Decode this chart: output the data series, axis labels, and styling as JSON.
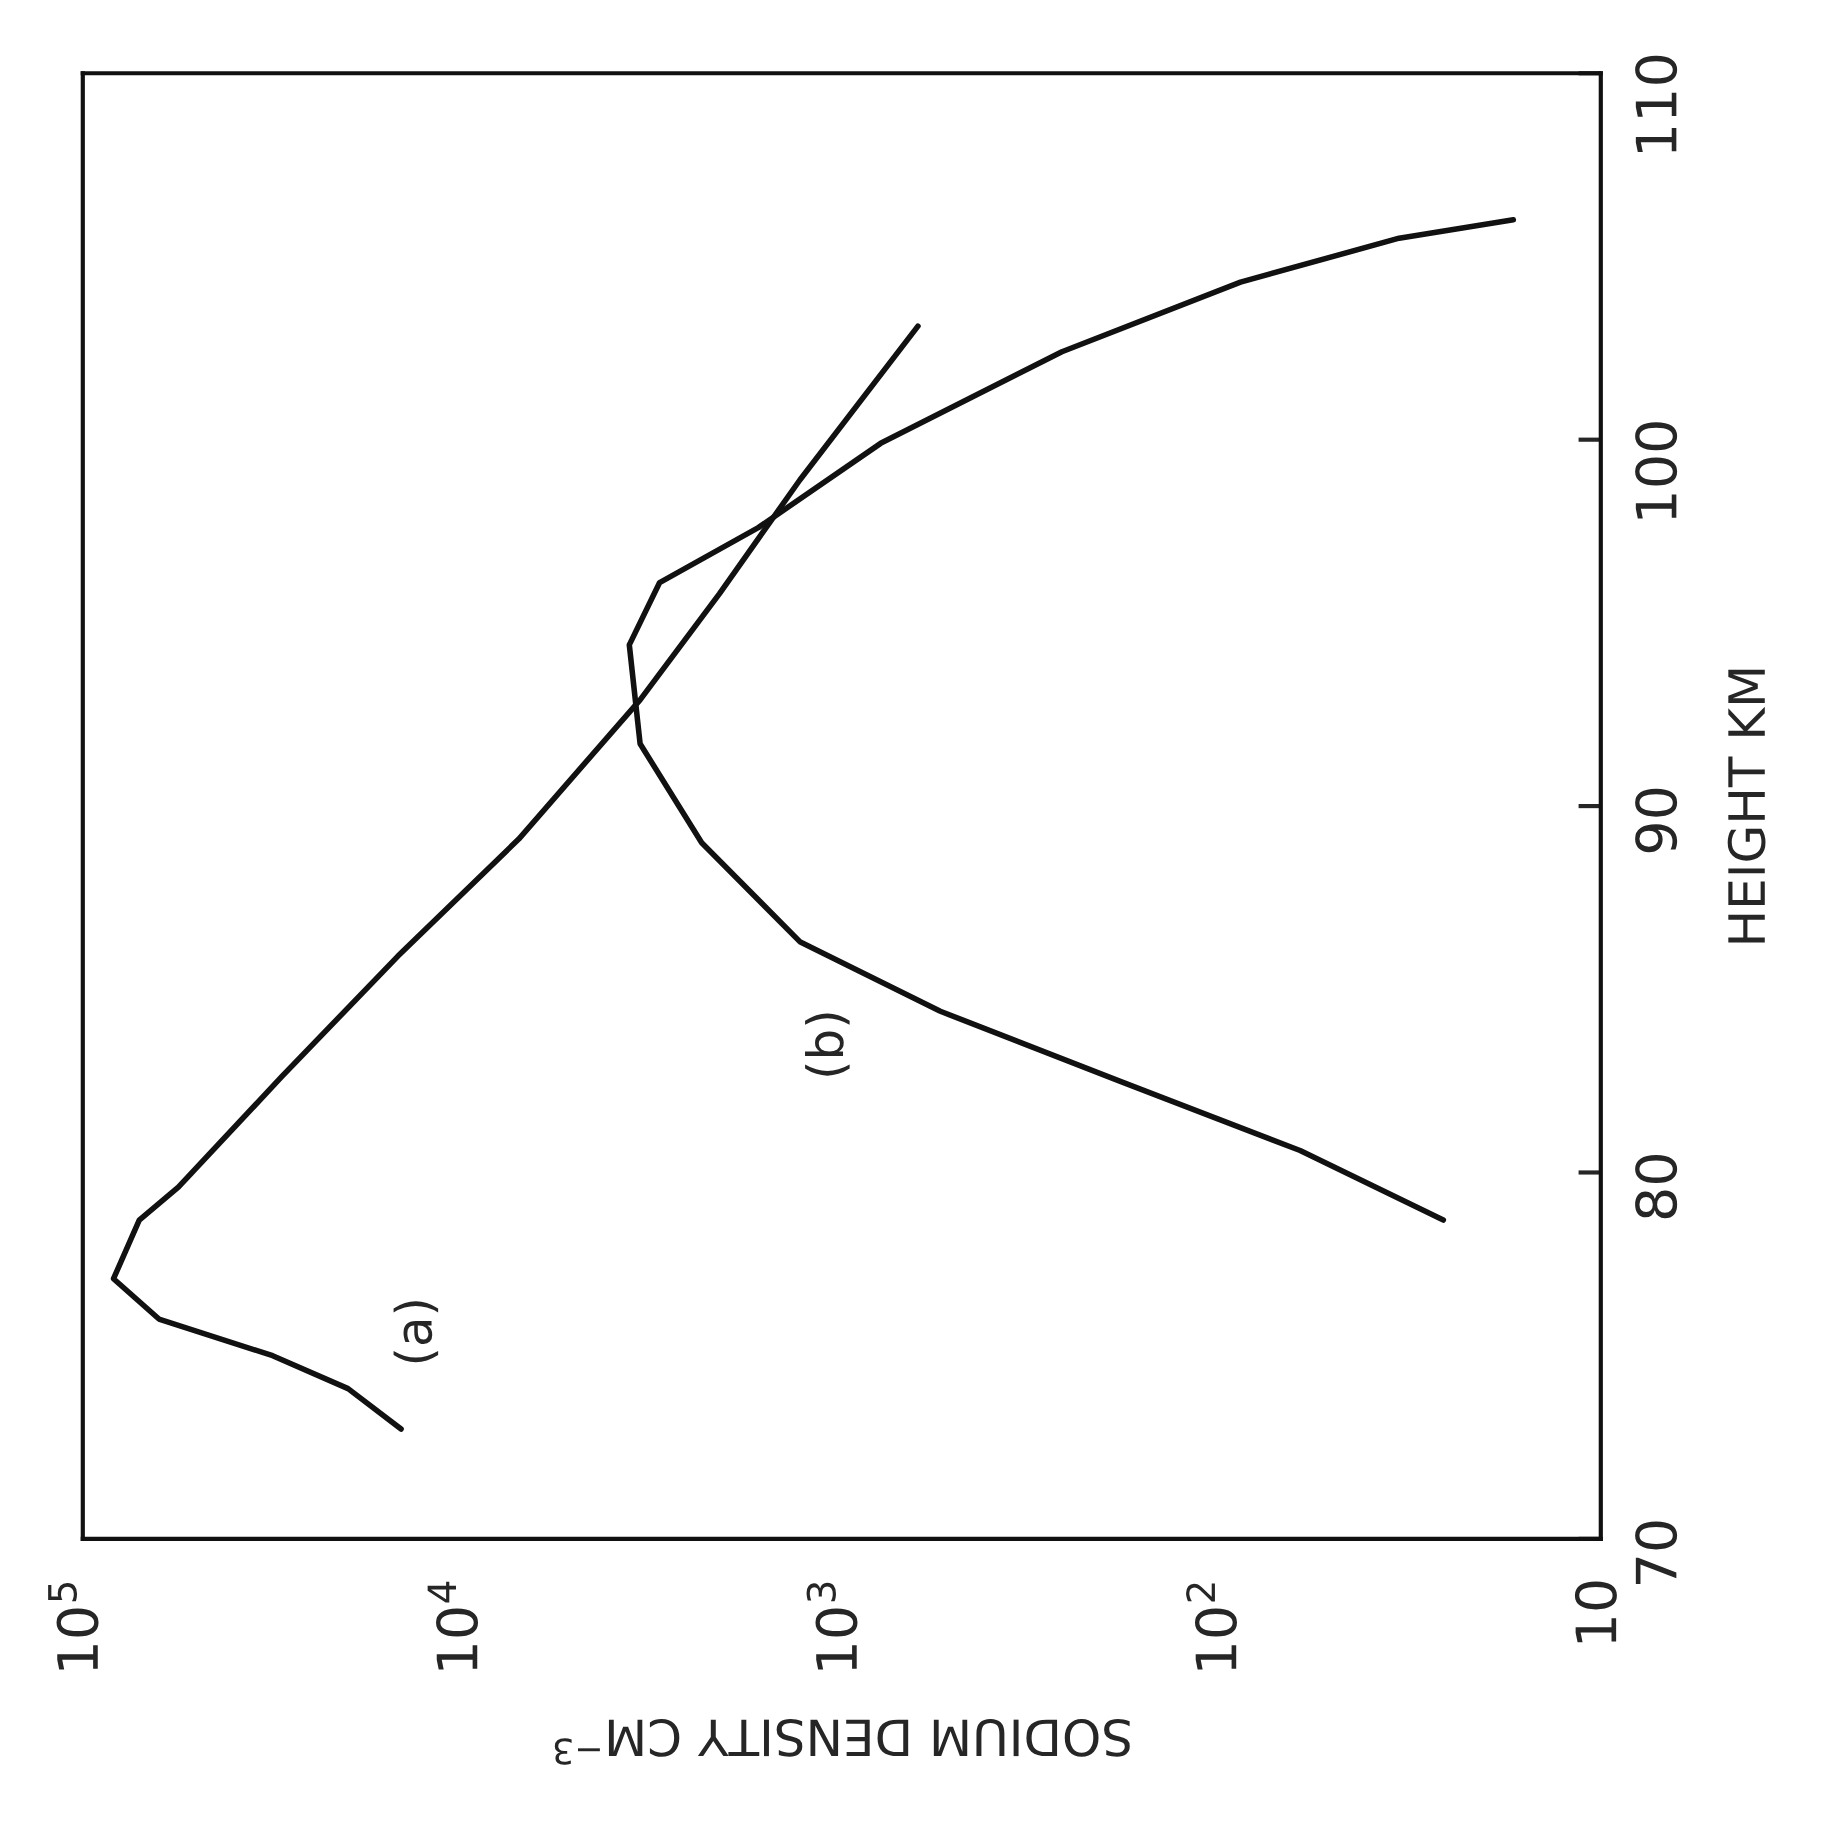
{
  "chart_data": {
    "type": "line",
    "xlabel": "SODIUM DENSITY CM$^{−3}$",
    "ylabel": "HEIGHT KM",
    "log": "x",
    "xlim": [
      100000,
      10
    ],
    "ylim": [
      70,
      110
    ],
    "xticks": [
      {
        "value": 100000,
        "label": "10$^{5}$"
      },
      {
        "value": 10000,
        "label": "10$^{4}$"
      },
      {
        "value": 1000,
        "label": "10$^{3}$"
      },
      {
        "value": 100,
        "label": "10$^{2}$"
      },
      10
    ],
    "yticks": [
      70,
      80,
      90,
      100,
      110
    ],
    "grid": false,
    "legend": false,
    "marker": "none",
    "line_style": "solid",
    "color": "#111111",
    "series": [
      {
        "name": "(a)",
        "x": [
          14500,
          20000,
          31600,
          63000,
          83000,
          71000,
          56000,
          30000,
          14800,
          7100,
          3400,
          2100,
          1290,
          630
        ],
        "values": [
          73.0,
          74.1,
          75.0,
          76.0,
          77.1,
          78.7,
          79.6,
          82.6,
          85.9,
          89.1,
          92.9,
          95.8,
          98.9,
          103.1
        ]
      },
      {
        "name": "(b)",
        "x": [
          26,
          62,
          186,
          550,
          1290,
          2340,
          3400,
          3630,
          3020,
          1660,
          790,
          263,
          89,
          34,
          17
        ],
        "values": [
          78.7,
          80.6,
          82.5,
          84.4,
          86.3,
          89.0,
          91.7,
          94.4,
          96.1,
          97.6,
          99.9,
          102.4,
          104.3,
          105.5,
          106.0
        ]
      }
    ]
  }
}
